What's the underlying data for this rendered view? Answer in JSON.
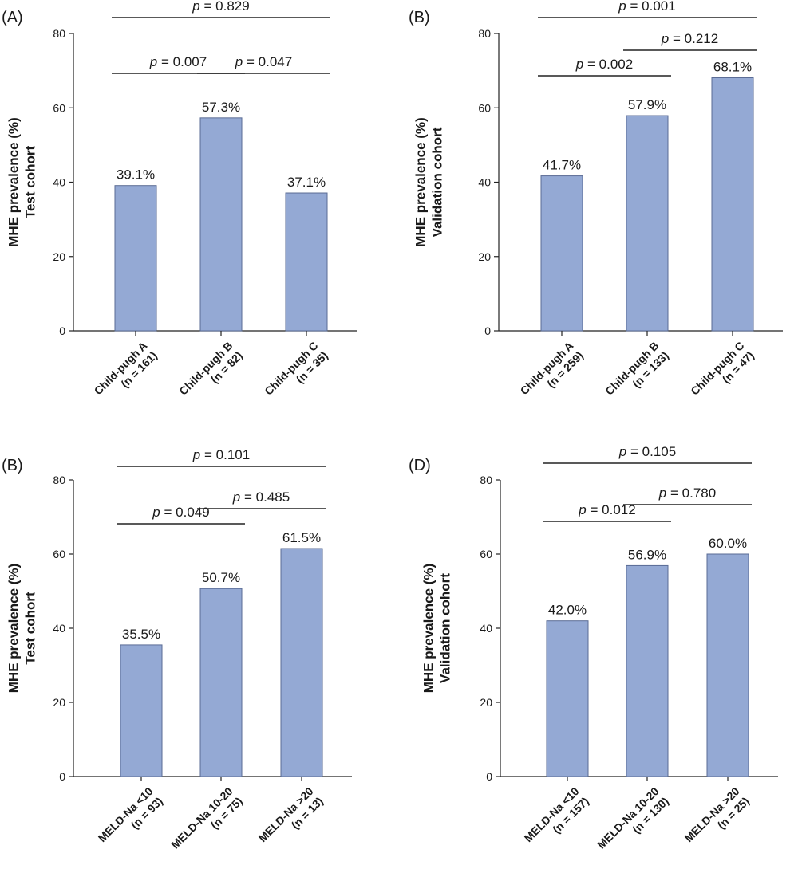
{
  "bar_color": "#94a9d4",
  "bar_stroke": "#5a6b94",
  "chart_data": [
    {
      "type": "bar",
      "panel": "(A)",
      "ylabel": [
        "MHE prevalence (%)",
        "Test cohort"
      ],
      "categories": [
        [
          "Child-pugh A",
          "(n = 161)"
        ],
        [
          "Child-pugh B",
          "(n = 82)"
        ],
        [
          "Child-pugh C",
          "(n = 35)"
        ]
      ],
      "values": [
        39.1,
        57.3,
        37.1
      ],
      "value_labels": [
        "39.1%",
        "57.3%",
        "37.1%"
      ],
      "ylim": [
        0,
        80
      ],
      "yticks": [
        0,
        20,
        40,
        60,
        80
      ],
      "comparisons": [
        {
          "from": 0,
          "to": 1,
          "p": "p = 0.007",
          "level": 1
        },
        {
          "from": 1,
          "to": 2,
          "p": "p = 0.047",
          "level": 1
        },
        {
          "from": 0,
          "to": 2,
          "p": "p = 0.829",
          "level": 2
        }
      ]
    },
    {
      "type": "bar",
      "panel": "(B)",
      "ylabel": [
        "MHE prevalence (%)",
        "Validation cohort"
      ],
      "categories": [
        [
          "Child-pugh A",
          "(n = 259)"
        ],
        [
          "Child-pugh B",
          "(n = 133)"
        ],
        [
          "Child-pugh C",
          "(n = 47)"
        ]
      ],
      "values": [
        41.7,
        57.9,
        68.1
      ],
      "value_labels": [
        "41.7%",
        "57.9%",
        "68.1%"
      ],
      "ylim": [
        0,
        80
      ],
      "yticks": [
        0,
        20,
        40,
        60,
        80
      ],
      "comparisons": [
        {
          "from": 0,
          "to": 1,
          "p": "p = 0.002",
          "level": 1
        },
        {
          "from": 1,
          "to": 2,
          "p": "p = 0.212",
          "level": 1.6
        },
        {
          "from": 0,
          "to": 2,
          "p": "p = 0.001",
          "level": 2.2
        }
      ]
    },
    {
      "type": "bar",
      "panel": "(B)",
      "ylabel": [
        "MHE prevalence (%)",
        "Test cohort"
      ],
      "categories": [
        [
          "MELD-Na <10",
          "(n = 93)"
        ],
        [
          "MELD-Na 10-20",
          "(n = 75)"
        ],
        [
          "MELD-Na >20",
          "(n = 13)"
        ]
      ],
      "values": [
        35.5,
        50.7,
        61.5
      ],
      "value_labels": [
        "35.5%",
        "50.7%",
        "61.5%"
      ],
      "ylim": [
        0,
        80
      ],
      "yticks": [
        0,
        20,
        40,
        60,
        80
      ],
      "comparisons": [
        {
          "from": 0,
          "to": 1,
          "p": "p = 0.049",
          "level": 1
        },
        {
          "from": 1,
          "to": 2,
          "p": "p = 0.485",
          "level": 1.4
        },
        {
          "from": 0,
          "to": 2,
          "p": "p = 0.101",
          "level": 2.2
        }
      ]
    },
    {
      "type": "bar",
      "panel": "(D)",
      "ylabel": [
        "MHE prevalence (%)",
        "Validation cohort"
      ],
      "categories": [
        [
          "MELD-Na <10",
          "(n = 157)"
        ],
        [
          "MELD-Na 10-20",
          "(n = 130)"
        ],
        [
          "MELD-Na >20",
          "(n = 25)"
        ]
      ],
      "values": [
        42.0,
        56.9,
        60.0
      ],
      "value_labels": [
        "42.0%",
        "56.9%",
        "60.0%"
      ],
      "ylim": [
        0,
        80
      ],
      "yticks": [
        0,
        20,
        40,
        60,
        80
      ],
      "comparisons": [
        {
          "from": 0,
          "to": 1,
          "p": "p = 0.012",
          "level": 1
        },
        {
          "from": 1,
          "to": 2,
          "p": "p = 0.780",
          "level": 1.4
        },
        {
          "from": 0,
          "to": 2,
          "p": "p = 0.105",
          "level": 2.2
        }
      ]
    }
  ]
}
